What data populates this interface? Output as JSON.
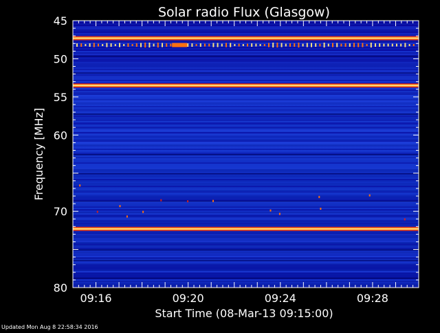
{
  "chart_data": {
    "type": "heatmap",
    "title": "Solar radio Flux (Glasgow)",
    "xlabel": "Start Time (08-Mar-13 09:15:00)",
    "ylabel": "Frequency [MHz]",
    "ylim": [
      45,
      80
    ],
    "y_ticks": [
      45,
      50,
      55,
      60,
      70,
      80
    ],
    "x_range_minutes": [
      0,
      15
    ],
    "x_ticks": [
      {
        "minute": 1,
        "label": "09:16"
      },
      {
        "minute": 5,
        "label": "09:20"
      },
      {
        "minute": 9,
        "label": "09:24"
      },
      {
        "minute": 13,
        "label": "09:28"
      }
    ],
    "colors": {
      "background_low": "#05059a",
      "background_mid": "#1030d0",
      "band_hot": "#ffe080",
      "band_warm": "#ff7010",
      "band_edge": "#d02020",
      "axis": "#ffffff"
    },
    "bright_bands_mhz": [
      47.3,
      53.5,
      72.3
    ],
    "burst_band_mhz": 48.2,
    "grid": false,
    "legend": "none"
  },
  "footer": {
    "updated_text": "Updated Mon Aug  8 22:58:34 2016"
  }
}
